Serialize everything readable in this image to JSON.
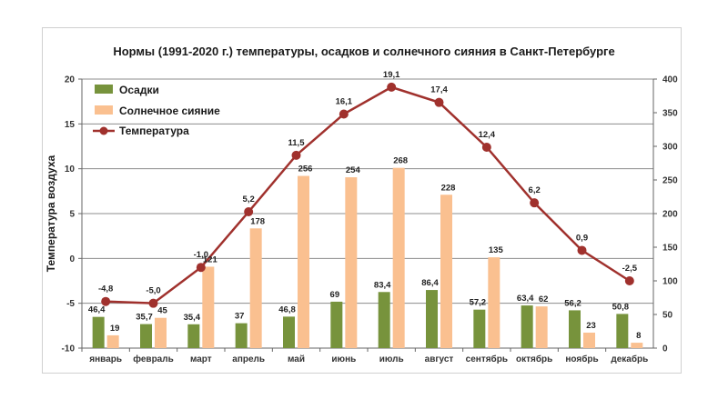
{
  "chart_data": {
    "type": "bar",
    "title": "Нормы (1991-2020 г.) температуры, осадков и солнечного сияния в Санкт-Петербурге",
    "ylabel": "Температура воздуха",
    "xlabel": "",
    "categories": [
      "январь",
      "февраль",
      "март",
      "апрель",
      "май",
      "июнь",
      "июль",
      "август",
      "сентябрь",
      "октябрь",
      "ноябрь",
      "декабрь"
    ],
    "ylim_left": [
      -10,
      20
    ],
    "yticks_left": [
      -10,
      -5,
      0,
      5,
      10,
      15,
      20
    ],
    "ylim_right": [
      0,
      400
    ],
    "yticks_right": [
      0,
      50,
      100,
      150,
      200,
      250,
      300,
      350,
      400
    ],
    "grid": true,
    "legend_position": "top-left",
    "series": [
      {
        "name": "Осадки",
        "type": "bar",
        "axis": "right",
        "color": "#77933c",
        "values": [
          46.4,
          35.7,
          35.4,
          37,
          46.8,
          69,
          83.4,
          86.4,
          57.2,
          63.4,
          56.2,
          50.8
        ],
        "labels": [
          "46,4",
          "35,7",
          "35,4",
          "37",
          "46,8",
          "69",
          "83,4",
          "86,4",
          "57,2",
          "63,4",
          "56,2",
          "50,8"
        ]
      },
      {
        "name": "Солнечное сияние",
        "type": "bar",
        "axis": "right",
        "color": "#fac090",
        "values": [
          19,
          45,
          121,
          178,
          256,
          254,
          268,
          228,
          135,
          62,
          23,
          8
        ],
        "labels": [
          "19",
          "45",
          "121",
          "178",
          "256",
          "254",
          "268",
          "228",
          "135",
          "62",
          "23",
          "8"
        ]
      },
      {
        "name": "Температура",
        "type": "line",
        "axis": "left",
        "color": "#a0312d",
        "values": [
          -4.8,
          -5.0,
          -1.0,
          5.2,
          11.5,
          16.1,
          19.1,
          17.4,
          12.4,
          6.2,
          0.9,
          -2.5
        ],
        "labels": [
          "-4,8",
          "-5,0",
          "-1,0",
          "5,2",
          "11,5",
          "16,1",
          "19,1",
          "17,4",
          "12,4",
          "6,2",
          "0,9",
          "-2,5"
        ]
      }
    ]
  }
}
